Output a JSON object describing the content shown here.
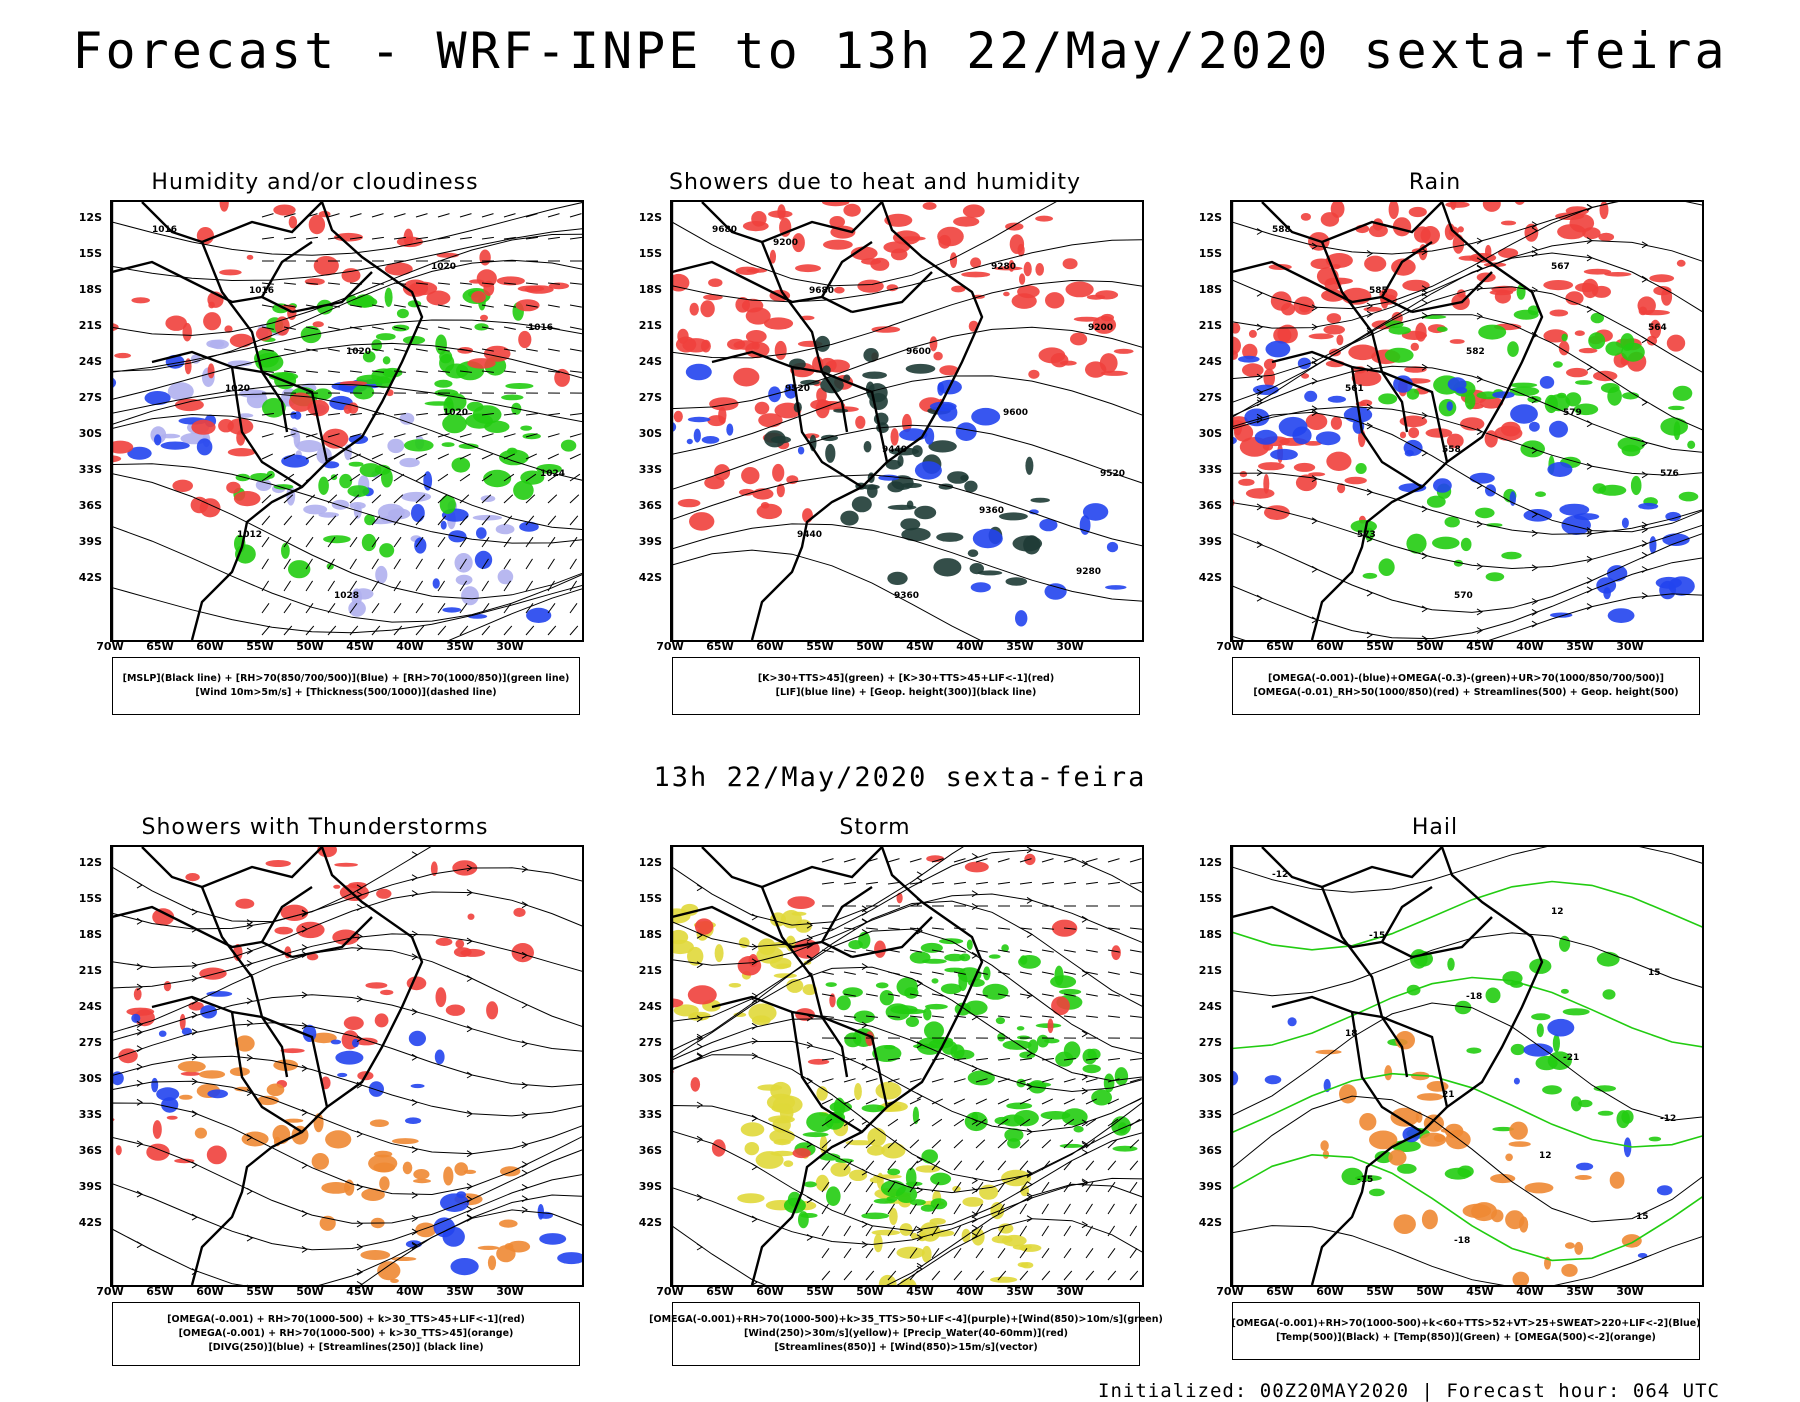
{
  "main_title": "Forecast - WRF-INPE to 13h 22/May/2020 sexta-feira",
  "mid_title": "13h 22/May/2020 sexta-feira",
  "footer": "Initialized: 00Z20MAY2020 | Forecast hour: 064 UTC",
  "axes": {
    "lat_labels": [
      "12S",
      "15S",
      "18S",
      "21S",
      "24S",
      "27S",
      "30S",
      "33S",
      "36S",
      "39S",
      "42S"
    ],
    "lon_labels": [
      "70W",
      "65W",
      "60W",
      "55W",
      "50W",
      "45W",
      "40W",
      "35W",
      "30W"
    ]
  },
  "colors": {
    "red": "#f0403c",
    "green": "#22cc11",
    "blue": "#2244ee",
    "lavender": "#b0b0ee",
    "darkgreen": "#1e3b35",
    "yellow": "#e0d83a",
    "orange": "#ee8833"
  },
  "panels": [
    {
      "title": "Humidity and/or cloudiness",
      "legend": [
        "[MSLP](Black line) + [RH>70(850/700/500)](Blue) + [RH>70(1000/850)](green line)",
        "[Wind 10m>5m/s] + [Thickness(500/1000)](dashed line)"
      ],
      "labels": [
        "1016",
        "1016",
        "1020",
        "1020",
        "1024",
        "1012",
        "1028",
        "1020",
        "1016",
        "1020"
      ]
    },
    {
      "title": "Showers due to heat and humidity",
      "legend": [
        "[K>30+TTS>45](green) + [K>30+TTS>45+LIF<-1](red)",
        "[LIF](blue line) + [Geop. height(300)](black line)"
      ],
      "labels": [
        "9680",
        "9680",
        "9600",
        "9600",
        "9520",
        "9440",
        "9360",
        "9280",
        "9200",
        "9520",
        "9440",
        "9360",
        "9280",
        "9200"
      ]
    },
    {
      "title": "Rain",
      "legend": [
        "[OMEGA(-0.001)-(blue)+OMEGA(-0.3)-(green)+UR>70(1000/850/700/500)]",
        "[OMEGA(-0.01)_RH>50(1000/850)(red) + Streamlines(500) + Geop. height(500)"
      ],
      "labels": [
        "588",
        "585",
        "582",
        "579",
        "576",
        "573",
        "570",
        "567",
        "564",
        "561",
        "558"
      ]
    },
    {
      "title": "Showers with Thunderstorms",
      "legend": [
        "[OMEGA(-0.001) + RH>70(1000-500) + k>30_TTS>45+LIF<-1](red)",
        "[OMEGA(-0.001) + RH>70(1000-500) + k>30_TTS>45](orange)",
        "[DIVG(250)](blue) + [Streamlines(250)] (black line)"
      ],
      "labels": []
    },
    {
      "title": "Storm",
      "legend": [
        "[OMEGA(-0.001)+RH>70(1000-500)+k>35_TTS>50+LIF<-4](purple)+[Wind(850)>10m/s](green)",
        "[Wind(250)>30m/s](yellow)+ [Precip_Water(40-60mm)](red)",
        "[Streamlines(850)] + [Wind(850)>15m/s](vector)"
      ],
      "labels": []
    },
    {
      "title": "Hail",
      "legend": [
        "[OMEGA(-0.001)+RH>70(1000-500)+k<60+TTS>52+VT>25+SWEAT>220+LIF<-2](Blue)",
        "[Temp(500)](Black) + [Temp(850)](Green) + [OMEGA(500)<-2](orange)"
      ],
      "labels": [
        "-12",
        "-15",
        "-18",
        "-21",
        "-12",
        "-15",
        "-18",
        "12",
        "15",
        "18",
        "21",
        "12",
        "15"
      ]
    }
  ]
}
